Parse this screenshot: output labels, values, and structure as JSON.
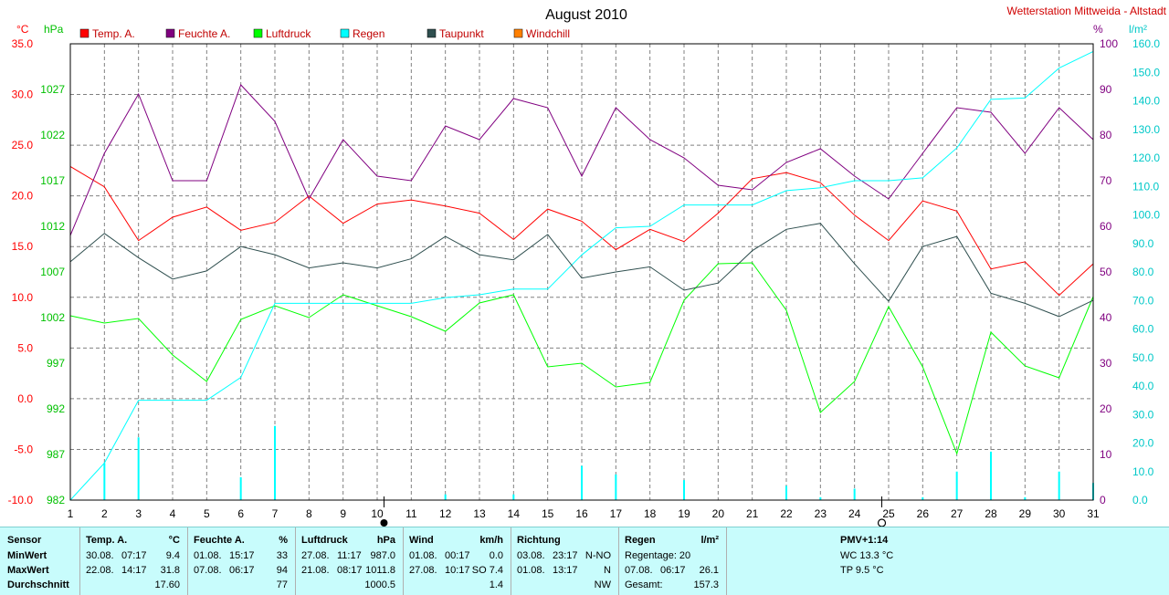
{
  "station_title": "Wetterstation Mittweida - Altstadt",
  "chart_data": {
    "type": "line",
    "title": "August 2010",
    "x": [
      1,
      2,
      3,
      4,
      5,
      6,
      7,
      8,
      9,
      10,
      11,
      12,
      13,
      14,
      15,
      16,
      17,
      18,
      19,
      20,
      21,
      22,
      23,
      24,
      25,
      26,
      27,
      28,
      29,
      30,
      31
    ],
    "axes": {
      "temp": {
        "unit": "°C",
        "range": [
          -10,
          35
        ],
        "ticks": [
          "35.0",
          "30.0",
          "25.0",
          "20.0",
          "15.0",
          "10.0",
          "5.0",
          "0.0",
          "-5.0",
          "-10.0"
        ],
        "color": "#ff0000"
      },
      "pressure": {
        "unit": "hPa",
        "range": [
          982,
          1032
        ],
        "ticks": [
          "1027",
          "1022",
          "1017",
          "1012",
          "1007",
          "1002",
          "997",
          "992",
          "987",
          "982"
        ],
        "color": "#00c000"
      },
      "humidity": {
        "unit": "%",
        "range": [
          0,
          100
        ],
        "ticks": [
          "100",
          "90",
          "80",
          "70",
          "60",
          "50",
          "40",
          "30",
          "20",
          "10",
          "0"
        ],
        "color": "#800080"
      },
      "rain": {
        "unit": "l/m²",
        "range": [
          0,
          160
        ],
        "ticks": [
          "160.0",
          "150.0",
          "140.0",
          "130.0",
          "120.0",
          "110.0",
          "100.0",
          "90.0",
          "80.0",
          "70.0",
          "60.0",
          "50.0",
          "40.0",
          "30.0",
          "20.0",
          "10.0",
          "0.0"
        ],
        "color": "#00c8c8"
      }
    },
    "legend": [
      {
        "name": "Temp. A.",
        "color": "#ff0000"
      },
      {
        "name": "Feuchte A.",
        "color": "#800080"
      },
      {
        "name": "Luftdruck",
        "color": "#00ff00"
      },
      {
        "name": "Regen",
        "color": "#00ffff"
      },
      {
        "name": "Taupunkt",
        "color": "#2f4f4f"
      },
      {
        "name": "Windchill",
        "color": "#ff8000"
      }
    ],
    "series": [
      {
        "name": "Temp. A.",
        "axis": "temp",
        "color": "#ff0000",
        "values": [
          22.9,
          20.9,
          15.6,
          17.9,
          18.9,
          16.6,
          17.4,
          20.0,
          17.3,
          19.2,
          19.6,
          19.0,
          18.3,
          15.7,
          18.7,
          17.5,
          14.7,
          16.7,
          15.5,
          18.3,
          21.7,
          22.3,
          21.3,
          18.1,
          15.6,
          19.5,
          18.5,
          12.8,
          13.5,
          10.2,
          13.3
        ]
      },
      {
        "name": "Feuchte A.",
        "axis": "humidity",
        "color": "#800080",
        "values": [
          58,
          76,
          89,
          70,
          70,
          91,
          83,
          66,
          79,
          71,
          70,
          82,
          79,
          88,
          86,
          71,
          86,
          79,
          75,
          69,
          68,
          74,
          77,
          71,
          66,
          76,
          86,
          85,
          76,
          86,
          79
        ]
      },
      {
        "name": "Luftdruck",
        "axis": "pressure",
        "color": "#00ff00",
        "values": [
          1002.2,
          1001.4,
          1001.9,
          997.9,
          995.0,
          1001.8,
          1003.3,
          1002.0,
          1004.5,
          1003.3,
          1002.1,
          1000.5,
          1003.6,
          1004.5,
          996.6,
          997.0,
          994.4,
          994.9,
          1003.9,
          1007.9,
          1008.0,
          1002.8,
          991.6,
          995.0,
          1003.2,
          996.6,
          987.1,
          1000.4,
          996.7,
          995.4,
          1004.3
        ]
      },
      {
        "name": "Regen",
        "axis": "rain",
        "color": "#00ffff",
        "values": [
          0.0,
          13.0,
          35.0,
          35.0,
          35.0,
          43.0,
          69.0,
          69.0,
          69.0,
          69.0,
          69.0,
          71.0,
          72.0,
          74.0,
          74.0,
          86.0,
          95.5,
          96.0,
          103.5,
          103.5,
          103.5,
          108.5,
          109.5,
          112.0,
          112.0,
          113.0,
          123.5,
          140.5,
          141.0,
          151.5,
          157.3
        ]
      },
      {
        "name": "Taupunkt",
        "axis": "temp",
        "color": "#2f4f4f",
        "values": [
          13.5,
          16.3,
          13.9,
          11.8,
          12.6,
          15.0,
          14.2,
          12.9,
          13.4,
          12.9,
          13.8,
          16.0,
          14.2,
          13.7,
          16.2,
          11.9,
          12.5,
          13.0,
          10.7,
          11.4,
          14.6,
          16.7,
          17.3,
          13.3,
          9.6,
          15.0,
          16.0,
          10.4,
          9.4,
          8.1,
          9.7
        ]
      }
    ],
    "daily_rain": {
      "name": "Regen Tag",
      "axis": "rain",
      "color": "#00ffff",
      "values": [
        0,
        13,
        22,
        0,
        0,
        8,
        26,
        0,
        0,
        0,
        0,
        2,
        0,
        2,
        0,
        12,
        9,
        0,
        7,
        0,
        0,
        5,
        1,
        4,
        0,
        1,
        10,
        17,
        1,
        10,
        6
      ]
    },
    "moon_markers": [
      {
        "day": 10.2,
        "phase": "new"
      },
      {
        "day": 24.8,
        "phase": "full"
      }
    ]
  },
  "stats": {
    "columns": [
      {
        "rows": [
          "Sensor",
          "MinWert",
          "MaxWert",
          "Durchschnitt"
        ]
      },
      {
        "header": "Temp. A.",
        "unit": "°C",
        "min": {
          "date": "30.08.",
          "time": "07:17",
          "value": "9.4"
        },
        "max": {
          "date": "22.08.",
          "time": "14:17",
          "value": "31.8"
        },
        "avg": "17.60"
      },
      {
        "header": "Feuchte A.",
        "unit": "%",
        "min": {
          "date": "01.08.",
          "time": "15:17",
          "value": "33"
        },
        "max": {
          "date": "07.08.",
          "time": "06:17",
          "value": "94"
        },
        "avg": "77"
      },
      {
        "header": "Luftdruck",
        "unit": "hPa",
        "min": {
          "date": "27.08.",
          "time": "11:17",
          "value": "987.0"
        },
        "max": {
          "date": "21.08.",
          "time": "08:17",
          "value": "1011.8"
        },
        "avg": "1000.5"
      },
      {
        "header": "Wind",
        "unit": "km/h",
        "min": {
          "date": "01.08.",
          "time": "00:17",
          "value": "0.0"
        },
        "max": {
          "date": "27.08.",
          "time": "10:17",
          "value": "SO 7.4"
        },
        "avg": "1.4"
      },
      {
        "header": "Richtung",
        "min": {
          "date": "03.08.",
          "time": "23:17",
          "value": "N-NO"
        },
        "max": {
          "date": "01.08.",
          "time": "13:17",
          "value": "N"
        },
        "avg": "NW"
      },
      {
        "header": "Regen",
        "unit": "l/m²",
        "r1": "Regentage: 20",
        "r2": {
          "date": "07.08.",
          "time": "06:17",
          "value": "26.1"
        },
        "r3": {
          "label": "Gesamt:",
          "value": "157.3"
        }
      },
      {
        "header": "PMV+1:14",
        "r1": "WC 13.3 °C",
        "r2": "TP 9.5 °C"
      }
    ]
  }
}
